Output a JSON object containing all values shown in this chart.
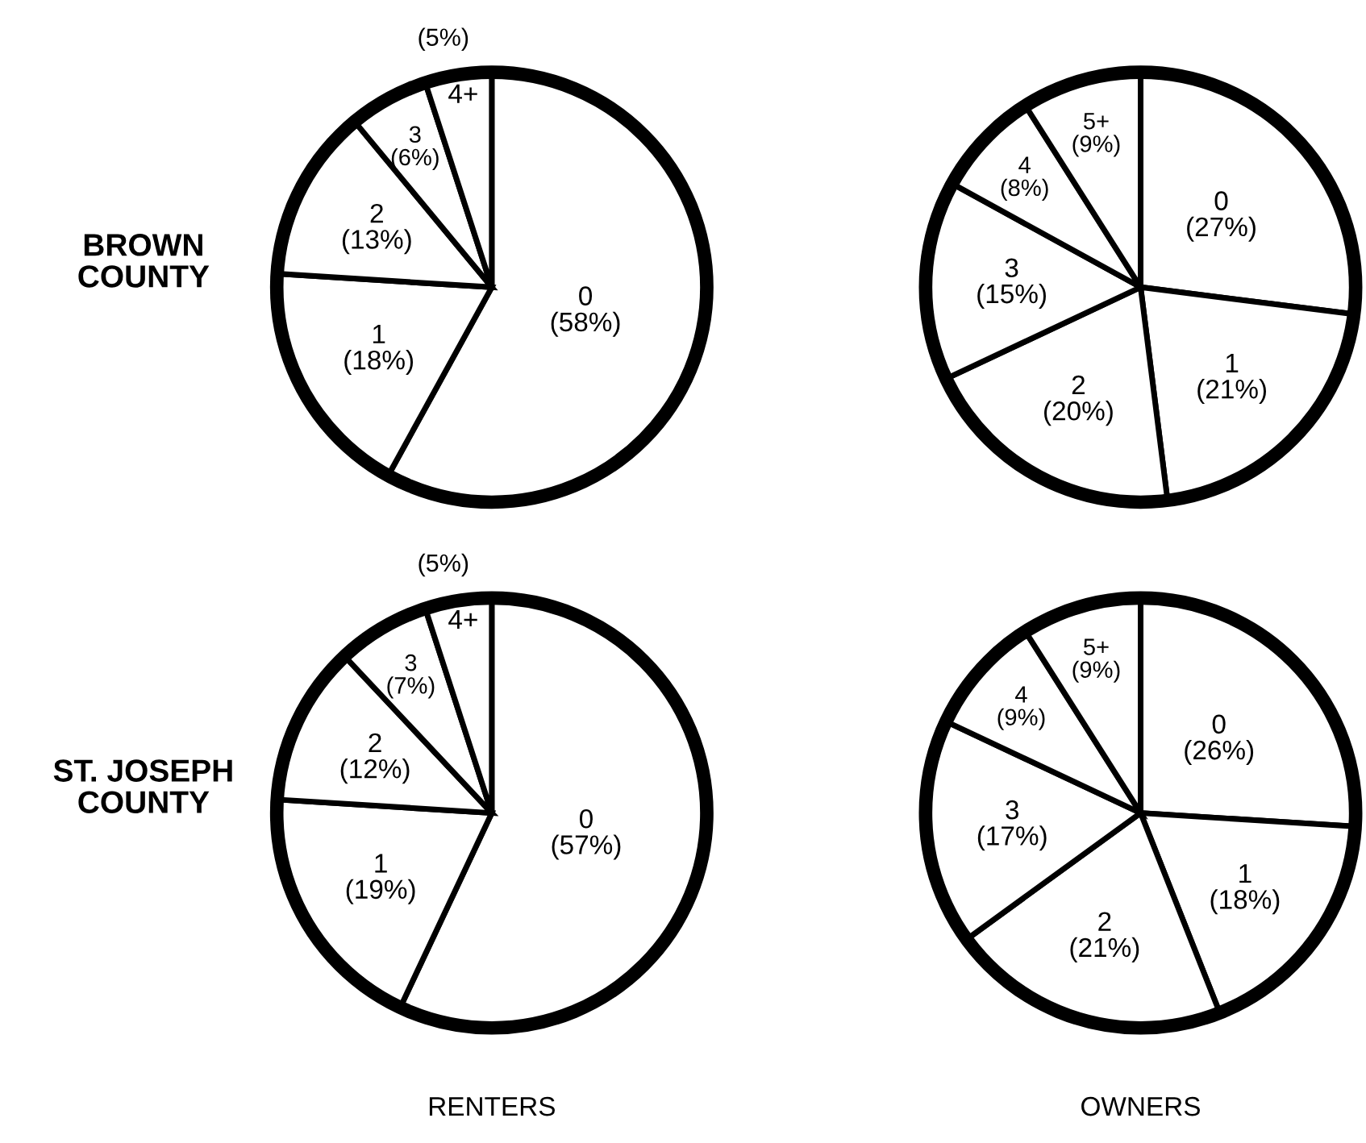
{
  "chart_data": [
    {
      "type": "pie",
      "ylabel": "BROWN\nCOUNTY",
      "categories": [
        "0",
        "1",
        "2",
        "3",
        "4+"
      ],
      "values": [
        58,
        18,
        13,
        6,
        5
      ],
      "value_labels": [
        "(58%)",
        "(18%)",
        "(13%)",
        "(6%)",
        "(5%)"
      ],
      "colors": [
        "#ffffff",
        "#ffffff",
        "#ffffff",
        "#ffffff",
        "#ffffff"
      ]
    },
    {
      "type": "pie",
      "categories": [
        "0",
        "1",
        "2",
        "3",
        "4",
        "5+"
      ],
      "values": [
        27,
        21,
        20,
        15,
        8,
        9
      ],
      "value_labels": [
        "(27%)",
        "(21%)",
        "(20%)",
        "(15%)",
        "(8%)",
        "(9%)"
      ],
      "colors": [
        "#ffffff",
        "#ffffff",
        "#ffffff",
        "#ffffff",
        "#ffffff",
        "#ffffff"
      ]
    },
    {
      "type": "pie",
      "ylabel": "ST. JOSEPH\nCOUNTY",
      "xlabel": "RENTERS",
      "categories": [
        "0",
        "1",
        "2",
        "3",
        "4+"
      ],
      "values": [
        57,
        19,
        12,
        7,
        5
      ],
      "value_labels": [
        "(57%)",
        "(19%)",
        "(12%)",
        "(7%)",
        "(5%)"
      ],
      "colors": [
        "#ffffff",
        "#ffffff",
        "#ffffff",
        "#ffffff",
        "#ffffff"
      ]
    },
    {
      "type": "pie",
      "xlabel": "OWNERS",
      "categories": [
        "0",
        "1",
        "2",
        "3",
        "4",
        "5+"
      ],
      "values": [
        26,
        18,
        21,
        17,
        9,
        9
      ],
      "value_labels": [
        "(26%)",
        "(18%)",
        "(21%)",
        "(17%)",
        "(9%)",
        "(9%)"
      ],
      "colors": [
        "#ffffff",
        "#ffffff",
        "#ffffff",
        "#ffffff",
        "#ffffff",
        "#ffffff"
      ]
    }
  ]
}
